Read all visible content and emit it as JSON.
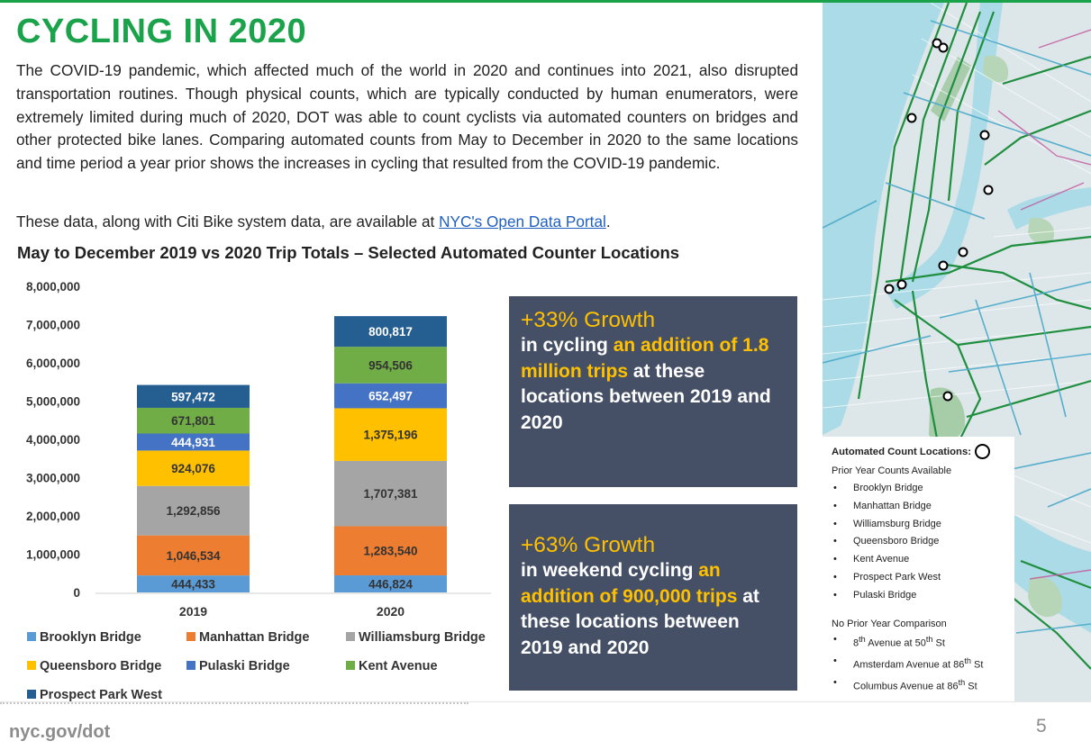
{
  "page": {
    "title": "CYCLING IN 2020",
    "paragraph": "The COVID-19 pandemic, which affected much of the world in 2020 and continues into 2021, also disrupted transportation routines. Though physical counts, which are typically conducted by human enumerators, were extremely limited during much of 2020, DOT was able to count cyclists via automated counters on bridges and other protected bike lanes. Comparing automated counts from May to December in 2020 to the same locations and time period a year prior shows the increases in cycling that resulted from the COVID-19 pandemic.",
    "data_line_prefix": "These data, along with Citi Bike system data, are available at ",
    "data_link": "NYC's Open Data Portal",
    "data_line_suffix": ".",
    "footer_left": "nyc.gov/dot",
    "footer_page": "5"
  },
  "chart_data": {
    "type": "bar",
    "stacked": true,
    "title": "May to December 2019 vs 2020 Trip Totals – Selected Automated Counter Locations",
    "categories": [
      "2019",
      "2020"
    ],
    "ylim": [
      0,
      8000000
    ],
    "yticks": [
      "0",
      "1,000,000",
      "2,000,000",
      "3,000,000",
      "4,000,000",
      "5,000,000",
      "6,000,000",
      "7,000,000",
      "8,000,000"
    ],
    "grid": false,
    "legend_position": "bottom",
    "series": [
      {
        "name": "Brooklyn Bridge",
        "color": "#5b9bd5",
        "values": [
          444433,
          446824
        ],
        "labels": [
          "444,433",
          "446,824"
        ]
      },
      {
        "name": "Manhattan Bridge",
        "color": "#ed7d31",
        "values": [
          1046534,
          1283540
        ],
        "labels": [
          "1,046,534",
          "1,283,540"
        ]
      },
      {
        "name": "Williamsburg Bridge",
        "color": "#a5a5a5",
        "values": [
          1292856,
          1707381
        ],
        "labels": [
          "1,292,856",
          "1,707,381"
        ]
      },
      {
        "name": "Queensboro Bridge",
        "color": "#ffc000",
        "values": [
          924076,
          1375196
        ],
        "labels": [
          "924,076",
          "1,375,196"
        ]
      },
      {
        "name": "Pulaski Bridge",
        "color": "#4472c4",
        "values": [
          444931,
          652497
        ],
        "labels": [
          "444,931",
          "652,497"
        ]
      },
      {
        "name": "Kent Avenue",
        "color": "#70ad47",
        "values": [
          671801,
          954506
        ],
        "labels": [
          "671,801",
          "954,506"
        ]
      },
      {
        "name": "Prospect Park West",
        "color": "#255e91",
        "values": [
          597472,
          800817
        ],
        "labels": [
          "597,472",
          "800,817"
        ]
      }
    ]
  },
  "stat_boxes": [
    {
      "growth": "+33% Growth",
      "pre": "in cycling ",
      "highlight": "an addition of 1.8 million trips",
      "post": " at these locations between 2019 and 2020"
    },
    {
      "growth": "+63% Growth",
      "pre": "in weekend cycling ",
      "highlight": "an addition of 900,000 trips",
      "post": " at these locations between 2019 and 2020"
    }
  ],
  "map_legend": {
    "heading": "Automated Count Locations:",
    "prior_heading": "Prior Year Counts Available",
    "prior_items": [
      "Brooklyn Bridge",
      "Manhattan Bridge",
      "Williamsburg Bridge",
      "Queensboro Bridge",
      "Kent Avenue",
      "Prospect Park West",
      "Pulaski Bridge"
    ],
    "no_prior_heading": "No Prior Year Comparison",
    "no_prior_items": [
      {
        "pre": "8",
        "sup": "th",
        "post": " Avenue at 50",
        "sup2": "th",
        "post2": " St"
      },
      {
        "pre": "Amsterdam Avenue at 86",
        "sup": "th",
        "post": " St",
        "sup2": "",
        "post2": ""
      },
      {
        "pre": "Columbus Avenue at 86",
        "sup": "th",
        "post": " St",
        "sup2": "",
        "post2": ""
      }
    ]
  },
  "colors": {
    "title_green": "#1aa34a",
    "box_bg": "#455066",
    "highlight": "#ffc000",
    "map_water": "#aadbe6",
    "map_land": "#dde6e9",
    "bike_lane_green": "#1f8f3f",
    "bike_lane_blue": "#4aa9c9",
    "bike_lane_pink": "#c25aa0"
  },
  "map_markers": 11
}
